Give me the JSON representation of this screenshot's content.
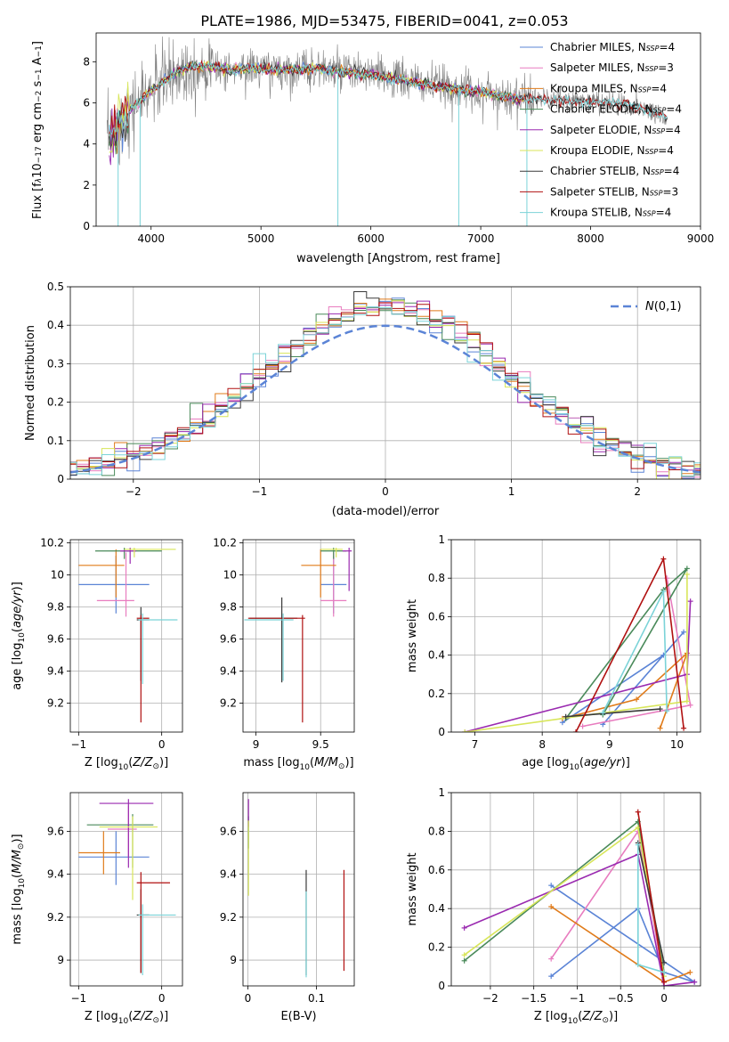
{
  "figure": {
    "title": "PLATE=1986, MJD=53475, FIBERID=0041, z=0.053",
    "colors": [
      "#5b84d6",
      "#e87cbf",
      "#e07b1a",
      "#4a8a5a",
      "#9a2ab0",
      "#d8e65a",
      "#3a3a3a",
      "#b01010",
      "#7bd3d8"
    ]
  },
  "chart_data": [
    {
      "id": "spectrum",
      "type": "line",
      "title": "PLATE=1986, MJD=53475, FIBERID=0041, z=0.053",
      "xlabel": "wavelength [Angstrom, rest frame]",
      "ylabel": "Flux [f",
      "xlim": [
        3500,
        9000
      ],
      "ylim": [
        0,
        9.4
      ],
      "xticks": [
        4000,
        5000,
        6000,
        7000,
        8000,
        9000
      ],
      "yticks": [
        0,
        2,
        4,
        6,
        8
      ],
      "data_color": "#808080",
      "continuum": [
        [
          3600,
          4.2
        ],
        [
          3700,
          4.8
        ],
        [
          3800,
          5.6
        ],
        [
          3900,
          6.1
        ],
        [
          4000,
          6.6
        ],
        [
          4100,
          7.0
        ],
        [
          4300,
          7.7
        ],
        [
          4500,
          7.8
        ],
        [
          4700,
          7.6
        ],
        [
          4900,
          7.7
        ],
        [
          5100,
          7.6
        ],
        [
          5300,
          7.6
        ],
        [
          5500,
          7.7
        ],
        [
          5700,
          7.5
        ],
        [
          6000,
          7.4
        ],
        [
          6200,
          7.2
        ],
        [
          6500,
          6.9
        ],
        [
          7000,
          6.5
        ],
        [
          7400,
          6.2
        ],
        [
          7800,
          6.1
        ],
        [
          8200,
          6.0
        ],
        [
          8500,
          5.7
        ],
        [
          8700,
          5.3
        ]
      ],
      "legend": [
        {
          "label": "Chabrier MILES, N",
          "sub": "SSP",
          "eq": "=4",
          "color": "#5b84d6"
        },
        {
          "label": "Salpeter MILES, N",
          "sub": "SSP",
          "eq": "=3",
          "color": "#e87cbf"
        },
        {
          "label": "Kroupa MILES, N",
          "sub": "SSP",
          "eq": "=4",
          "color": "#e07b1a"
        },
        {
          "label": "Chabrier ELODIE, N",
          "sub": "SSP",
          "eq": "=4",
          "color": "#4a8a5a"
        },
        {
          "label": "Salpeter ELODIE, N",
          "sub": "SSP",
          "eq": "=4",
          "color": "#9a2ab0"
        },
        {
          "label": "Kroupa ELODIE, N",
          "sub": "SSP",
          "eq": "=4",
          "color": "#d8e65a"
        },
        {
          "label": "Chabrier STELIB, N",
          "sub": "SSP",
          "eq": "=4",
          "color": "#3a3a3a"
        },
        {
          "label": "Salpeter STELIB, N",
          "sub": "SSP",
          "eq": "=3",
          "color": "#b01010"
        },
        {
          "label": "Kroupa STELIB, N",
          "sub": "SSP",
          "eq": "=4",
          "color": "#7bd3d8"
        }
      ],
      "legend_position": "upper right"
    },
    {
      "id": "residuals",
      "type": "histogram",
      "xlabel": "(data-model)/error",
      "ylabel": "Normed distribution",
      "xlim": [
        -2.5,
        2.5
      ],
      "ylim": [
        0,
        0.5
      ],
      "xticks": [
        -2,
        -1,
        0,
        1,
        2
      ],
      "yticks": [
        0.0,
        0.1,
        0.2,
        0.3,
        0.4,
        0.5
      ],
      "grid": true,
      "reference_label": "N(0,1)",
      "legend_position": "upper right"
    },
    {
      "id": "age_vs_Z",
      "type": "errorbar",
      "xlabel": "Z [log",
      "ylabel": "age  [log",
      "xlim": [
        -1.1,
        0.25
      ],
      "ylim": [
        9.02,
        10.22
      ],
      "xticks": [
        -1,
        0
      ],
      "yticks": [
        9.2,
        9.4,
        9.6,
        9.8,
        10.0,
        10.2
      ],
      "points": [
        {
          "x": -0.55,
          "xerr": [
            0.45,
            0.4
          ],
          "y": 9.94,
          "yerr": [
            0.18,
            0.18
          ],
          "c": 0
        },
        {
          "x": -0.43,
          "xerr": [
            0.35,
            0.1
          ],
          "y": 9.84,
          "yerr": [
            0.1,
            0.3
          ],
          "c": 1
        },
        {
          "x": -0.55,
          "xerr": [
            0.45,
            0.1
          ],
          "y": 10.06,
          "yerr": [
            0.2,
            0.1
          ],
          "c": 2
        },
        {
          "x": -0.45,
          "xerr": [
            0.35,
            0.45
          ],
          "y": 10.15,
          "yerr": [
            0.05,
            0.02
          ],
          "c": 3
        },
        {
          "x": -0.38,
          "xerr": [
            0.12,
            0.07
          ],
          "y": 10.15,
          "yerr": [
            0.08,
            0.02
          ],
          "c": 4
        },
        {
          "x": -0.33,
          "xerr": [
            0.12,
            0.5
          ],
          "y": 10.16,
          "yerr": [
            0.05,
            0.01
          ],
          "c": 5
        },
        {
          "x": -0.25,
          "xerr": [
            0.05,
            0.1
          ],
          "y": 9.72,
          "yerr": [
            0.38,
            0.08
          ],
          "c": 6
        },
        {
          "x": -0.25,
          "xerr": [
            0.05,
            0.1
          ],
          "y": 9.73,
          "yerr": [
            0.65,
            0.02
          ],
          "c": 7
        },
        {
          "x": -0.23,
          "xerr": [
            0.05,
            0.42
          ],
          "y": 9.72,
          "yerr": [
            0.4,
            0.04
          ],
          "c": 8
        }
      ]
    },
    {
      "id": "age_vs_mass",
      "type": "errorbar",
      "xlabel": "mass [log",
      "xlim": [
        8.9,
        9.76
      ],
      "ylim": [
        9.02,
        10.22
      ],
      "xticks": [
        9.0,
        9.5
      ],
      "yticks": [
        9.2,
        9.4,
        9.6,
        9.8,
        10.0,
        10.2
      ],
      "points": [
        {
          "x": 9.6,
          "xerr": [
            0.1,
            0.1
          ],
          "y": 9.94,
          "yerr": [
            0.18,
            0.18
          ],
          "c": 0
        },
        {
          "x": 9.6,
          "xerr": [
            0.1,
            0.1
          ],
          "y": 9.84,
          "yerr": [
            0.1,
            0.3
          ],
          "c": 1
        },
        {
          "x": 9.5,
          "xerr": [
            0.15,
            0.12
          ],
          "y": 10.06,
          "yerr": [
            0.2,
            0.1
          ],
          "c": 2
        },
        {
          "x": 9.6,
          "xerr": [
            0.1,
            0.1
          ],
          "y": 10.15,
          "yerr": [
            0.05,
            0.02
          ],
          "c": 3
        },
        {
          "x": 9.72,
          "xerr": [
            0.05,
            0.02
          ],
          "y": 10.15,
          "yerr": [
            0.25,
            0.02
          ],
          "c": 4
        },
        {
          "x": 9.62,
          "xerr": [
            0.12,
            0.05
          ],
          "y": 10.16,
          "yerr": [
            0.05,
            0.01
          ],
          "c": 5
        },
        {
          "x": 9.2,
          "xerr": [
            0.25,
            0.12
          ],
          "y": 9.73,
          "yerr": [
            0.4,
            0.13
          ],
          "c": 6
        },
        {
          "x": 9.36,
          "xerr": [
            0.42,
            0.02
          ],
          "y": 9.73,
          "yerr": [
            0.65,
            0.02
          ],
          "c": 7
        },
        {
          "x": 9.21,
          "xerr": [
            0.3,
            0.08
          ],
          "y": 9.72,
          "yerr": [
            0.38,
            0.04
          ],
          "c": 8
        }
      ]
    },
    {
      "id": "weight_vs_age",
      "type": "line",
      "xlabel": "age  [log",
      "ylabel": "mass weight",
      "xlim": [
        6.65,
        10.35
      ],
      "ylim": [
        0,
        1.0
      ],
      "xticks": [
        7,
        8,
        9,
        10
      ],
      "yticks": [
        0.0,
        0.2,
        0.4,
        0.6,
        0.8,
        1.0
      ],
      "grid": true,
      "series": [
        {
          "c": 0,
          "x": [
            8.3,
            9.8,
            10.1,
            8.9
          ],
          "y": [
            0.05,
            0.4,
            0.52,
            0.04
          ]
        },
        {
          "c": 1,
          "x": [
            9.85,
            10.2,
            8.6
          ],
          "y": [
            0.8,
            0.14,
            0.03
          ]
        },
        {
          "c": 2,
          "x": [
            8.3,
            9.4,
            10.15,
            9.75
          ],
          "y": [
            0.07,
            0.17,
            0.41,
            0.02
          ]
        },
        {
          "c": 3,
          "x": [
            8.35,
            9.8,
            10.15,
            8.9
          ],
          "y": [
            0.07,
            0.74,
            0.85,
            0.09
          ]
        },
        {
          "c": 4,
          "x": [
            6.85,
            10.15,
            10.2
          ],
          "y": [
            0.0,
            0.3,
            0.68
          ]
        },
        {
          "c": 5,
          "x": [
            6.85,
            10.15,
            10.15
          ],
          "y": [
            0.0,
            0.16,
            0.82
          ]
        },
        {
          "c": 6,
          "x": [
            8.35,
            9.75
          ],
          "y": [
            0.08,
            0.12
          ]
        },
        {
          "c": 7,
          "x": [
            8.5,
            9.8,
            10.1
          ],
          "y": [
            0.0,
            0.9,
            0.02
          ]
        },
        {
          "c": 8,
          "x": [
            8.9,
            9.8,
            9.85
          ],
          "y": [
            0.1,
            0.73,
            0.11
          ]
        }
      ]
    },
    {
      "id": "mass_vs_Z",
      "type": "errorbar",
      "xlabel": "Z [log",
      "ylabel": "mass [log",
      "xlim": [
        -1.1,
        0.25
      ],
      "ylim": [
        8.88,
        9.78
      ],
      "xticks": [
        -1,
        0
      ],
      "yticks": [
        9.0,
        9.2,
        9.4,
        9.6
      ],
      "points": [
        {
          "x": -0.55,
          "xerr": [
            0.45,
            0.4
          ],
          "y": 9.48,
          "yerr": [
            0.13,
            0.12
          ],
          "c": 0
        },
        {
          "x": -0.4,
          "xerr": [
            0.25,
            0.1
          ],
          "y": 9.61,
          "yerr": [
            0.13,
            0.11
          ],
          "c": 1
        },
        {
          "x": -0.7,
          "xerr": [
            0.3,
            0.2
          ],
          "y": 9.5,
          "yerr": [
            0.1,
            0.1
          ],
          "c": 2
        },
        {
          "x": -0.35,
          "xerr": [
            0.55,
            0.25
          ],
          "y": 9.63,
          "yerr": [
            0.2,
            0.05
          ],
          "c": 3
        },
        {
          "x": -0.4,
          "xerr": [
            0.35,
            0.3
          ],
          "y": 9.73,
          "yerr": [
            0.3,
            0.02
          ],
          "c": 4
        },
        {
          "x": -0.35,
          "xerr": [
            0.4,
            0.3
          ],
          "y": 9.62,
          "yerr": [
            0.34,
            0.05
          ],
          "c": 5
        },
        {
          "x": -0.25,
          "xerr": [
            0.05,
            0.1
          ],
          "y": 9.21,
          "yerr": [
            0.27,
            0.12
          ],
          "c": 6
        },
        {
          "x": -0.25,
          "xerr": [
            0.05,
            0.35
          ],
          "y": 9.36,
          "yerr": [
            0.42,
            0.05
          ],
          "c": 7
        },
        {
          "x": -0.23,
          "xerr": [
            0.05,
            0.4
          ],
          "y": 9.21,
          "yerr": [
            0.28,
            0.05
          ],
          "c": 8
        }
      ]
    },
    {
      "id": "mass_vs_ebv",
      "type": "errorbar",
      "xlabel": "E(B-V)",
      "xlim": [
        -0.007,
        0.155
      ],
      "ylim": [
        8.88,
        9.78
      ],
      "xticks": [
        0.0,
        0.1
      ],
      "yticks": [
        9.0,
        9.2,
        9.4,
        9.6
      ],
      "points": [
        {
          "x": 0.001,
          "y": 9.62,
          "yerr": [
            0.1,
            0.05
          ],
          "c": 3
        },
        {
          "x": 0.001,
          "y": 9.7,
          "yerr": [
            0.08,
            0.05
          ],
          "c": 4
        },
        {
          "x": 0.001,
          "y": 9.55,
          "yerr": [
            0.25,
            0.1
          ],
          "c": 5
        },
        {
          "x": 0.085,
          "y": 9.3,
          "yerr": [
            0.37,
            0.12
          ],
          "c": 6
        },
        {
          "x": 0.085,
          "y": 9.2,
          "yerr": [
            0.28,
            0.12
          ],
          "c": 8
        },
        {
          "x": 0.14,
          "y": 9.2,
          "yerr": [
            0.25,
            0.22
          ],
          "c": 7
        }
      ]
    },
    {
      "id": "weight_vs_Z",
      "type": "line",
      "xlabel": "Z [log",
      "ylabel": "mass weight",
      "xlim": [
        -2.45,
        0.42
      ],
      "ylim": [
        0,
        1.0
      ],
      "xticks": [
        -2.0,
        -1.5,
        -1.0,
        -0.5,
        0.0
      ],
      "yticks": [
        0.0,
        0.2,
        0.4,
        0.6,
        0.8,
        1.0
      ],
      "grid": true,
      "series": [
        {
          "c": 0,
          "x": [
            -1.3,
            -0.3,
            0.0,
            0.35,
            -1.3
          ],
          "y": [
            0.05,
            0.4,
            0.07,
            0.02,
            0.52
          ]
        },
        {
          "c": 1,
          "x": [
            -1.3,
            -0.3,
            0.0
          ],
          "y": [
            0.14,
            0.8,
            0.02
          ]
        },
        {
          "c": 2,
          "x": [
            -1.3,
            0.0,
            0.3
          ],
          "y": [
            0.41,
            0.02,
            0.07
          ]
        },
        {
          "c": 3,
          "x": [
            -2.3,
            -0.3,
            0.0
          ],
          "y": [
            0.13,
            0.85,
            0.07
          ]
        },
        {
          "c": 4,
          "x": [
            -2.3,
            -0.3,
            0.0,
            0.35
          ],
          "y": [
            0.3,
            0.68,
            0.0,
            0.02
          ]
        },
        {
          "c": 5,
          "x": [
            -2.3,
            -0.3,
            0.0
          ],
          "y": [
            0.16,
            0.82,
            0.05
          ]
        },
        {
          "c": 6,
          "x": [
            -0.3,
            0.0
          ],
          "y": [
            0.74,
            0.12
          ]
        },
        {
          "c": 7,
          "x": [
            -0.3,
            0.0
          ],
          "y": [
            0.9,
            0.02
          ]
        },
        {
          "c": 8,
          "x": [
            -0.3,
            -0.3,
            0.0
          ],
          "y": [
            0.73,
            0.11,
            0.07
          ]
        }
      ]
    }
  ]
}
